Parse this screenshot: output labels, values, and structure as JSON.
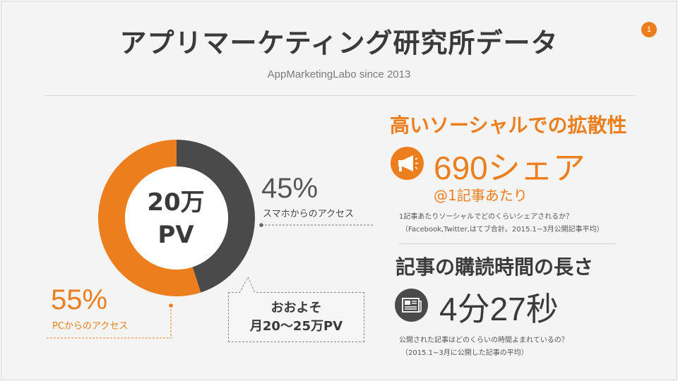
{
  "slide": {
    "title": "アプリマーケティング研究所データ",
    "subtitle": "AppMarketingLabo since 2013",
    "page_number": "1"
  },
  "chart_data": {
    "type": "pie",
    "variant": "donut",
    "center_label": [
      "20万",
      "PV"
    ],
    "slices": [
      {
        "label": "スマホからのアクセス",
        "value": 45,
        "display": "45%",
        "color": "#4a4a4a"
      },
      {
        "label": "PCからのアクセス",
        "value": 55,
        "display": "55%",
        "color": "#ec7e1e"
      }
    ]
  },
  "callout": {
    "line1": "おおよそ",
    "line2": "月20〜25万PV"
  },
  "social": {
    "heading": "高いソーシャルでの拡散性",
    "stat": "690シェア",
    "stat_sub": "@1記事あたり",
    "note_line1": "1記事あたりソーシャルでどのくらいシェアされるか？",
    "note_line2": "（Facebook,Twitter,はてブ合計。2015.1~3月公開記事平均）",
    "icon": "megaphone-icon"
  },
  "reading": {
    "heading": "記事の購読時間の長さ",
    "stat": "4分27秒",
    "note_line1": "公開された記事はどのくらいの時間よまれているの？",
    "note_line2": "（2015.1~3月に公開した記事の平均）",
    "icon": "newspaper-icon"
  },
  "colors": {
    "accent": "#ec7e1e",
    "dark": "#4a4a4a",
    "background": "#f4f4f4"
  }
}
